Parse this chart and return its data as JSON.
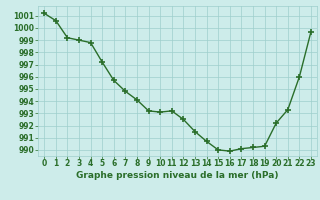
{
  "x": [
    0,
    1,
    2,
    3,
    4,
    5,
    6,
    7,
    8,
    9,
    10,
    11,
    12,
    13,
    14,
    15,
    16,
    17,
    18,
    19,
    20,
    21,
    22,
    23
  ],
  "y": [
    1001.2,
    1000.6,
    999.2,
    999.0,
    998.8,
    997.2,
    995.7,
    994.8,
    994.1,
    993.2,
    993.1,
    993.2,
    992.5,
    991.5,
    990.7,
    990.0,
    989.9,
    990.1,
    990.2,
    990.3,
    992.2,
    993.3,
    996.0,
    999.7
  ],
  "line_color": "#2a6e2a",
  "marker": "+",
  "marker_size": 4.0,
  "marker_lw": 1.2,
  "bg_color": "#cdecea",
  "grid_color": "#9ecfcc",
  "title": "Graphe pression niveau de la mer (hPa)",
  "title_fontsize": 6.5,
  "ylim_min": 989.5,
  "ylim_max": 1001.8,
  "xlim_min": -0.5,
  "xlim_max": 23.5,
  "xticks": [
    0,
    1,
    2,
    3,
    4,
    5,
    6,
    7,
    8,
    9,
    10,
    11,
    12,
    13,
    14,
    15,
    16,
    17,
    18,
    19,
    20,
    21,
    22,
    23
  ],
  "yticks": [
    990,
    991,
    992,
    993,
    994,
    995,
    996,
    997,
    998,
    999,
    1000,
    1001
  ],
  "tick_fontsize": 5.5,
  "line_width": 1.0
}
